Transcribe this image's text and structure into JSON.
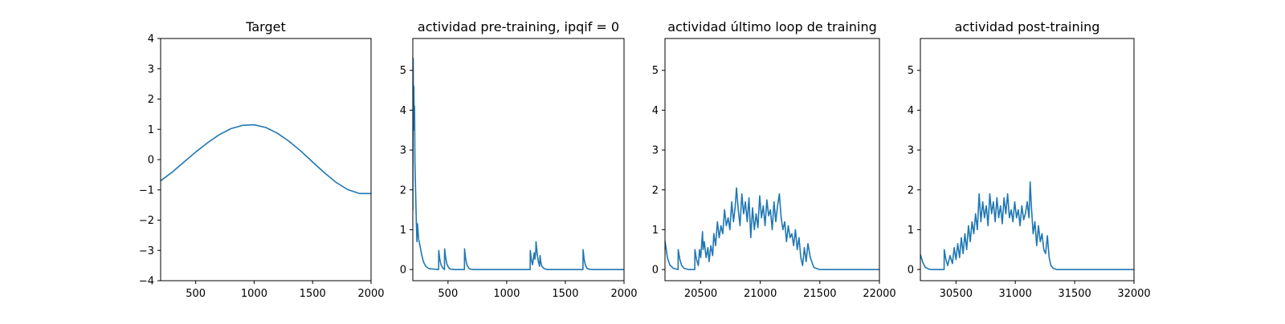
{
  "chart_data": [
    {
      "type": "line",
      "title": "Target",
      "xlabel": "",
      "ylabel": "",
      "xlim": [
        200,
        2000
      ],
      "ylim": [
        -4,
        4
      ],
      "xticks": [
        500,
        1000,
        1500,
        2000
      ],
      "yticks": [
        -4,
        -3,
        -2,
        -1,
        0,
        1,
        2,
        3,
        4
      ],
      "grid": false,
      "series": [
        {
          "color": "#1f77b4",
          "x": [
            200,
            300,
            400,
            500,
            600,
            700,
            800,
            900,
            1000,
            1100,
            1200,
            1300,
            1400,
            1500,
            1600,
            1700,
            1800,
            1900,
            2000
          ],
          "y": [
            -0.7,
            -0.41,
            -0.08,
            0.25,
            0.55,
            0.82,
            1.02,
            1.13,
            1.15,
            1.06,
            0.87,
            0.6,
            0.28,
            -0.08,
            -0.43,
            -0.75,
            -0.99,
            -1.12,
            -1.12
          ]
        }
      ]
    },
    {
      "type": "line",
      "title": "actividad pre-training, ipqif = 0",
      "xlabel": "",
      "ylabel": "",
      "xlim": [
        200,
        2000
      ],
      "ylim": [
        -0.28,
        5.8
      ],
      "xticks": [
        500,
        1000,
        1500,
        2000
      ],
      "yticks": [
        0,
        1,
        2,
        3,
        4,
        5
      ],
      "grid": false,
      "series": [
        {
          "color": "#1f77b4",
          "x": [
            200,
            203,
            206,
            209,
            212,
            215,
            218,
            222,
            226,
            230,
            235,
            240,
            250,
            260,
            275,
            290,
            310,
            340,
            420,
            421,
            430,
            440,
            455,
            470,
            471,
            480,
            490,
            505,
            520,
            560,
            640,
            641,
            650,
            660,
            675,
            690,
            720,
            800,
            900,
            1000,
            1100,
            1200,
            1201,
            1210,
            1220,
            1235,
            1240,
            1248,
            1250,
            1260,
            1270,
            1280,
            1285,
            1290,
            1300,
            1320,
            1350,
            1450,
            1550,
            1650,
            1651,
            1660,
            1670,
            1685,
            1700,
            1730,
            1800,
            1900,
            2000
          ],
          "y": [
            1.5,
            5.3,
            3.5,
            4.6,
            3.6,
            4.1,
            2.7,
            2.2,
            1.7,
            1.2,
            0.7,
            1.15,
            0.75,
            0.62,
            0.38,
            0.2,
            0.08,
            0.02,
            0.0,
            0.48,
            0.26,
            0.12,
            0.04,
            0.0,
            0.52,
            0.3,
            0.14,
            0.05,
            0.01,
            0.0,
            0.0,
            0.52,
            0.28,
            0.13,
            0.04,
            0.01,
            0.0,
            0.0,
            0.0,
            0.0,
            0.0,
            0.0,
            0.48,
            0.26,
            0.12,
            0.42,
            0.26,
            0.46,
            0.7,
            0.4,
            0.2,
            0.08,
            0.35,
            0.2,
            0.08,
            0.02,
            0.0,
            0.0,
            0.0,
            0.0,
            0.5,
            0.26,
            0.12,
            0.03,
            0.01,
            0.0,
            0.0,
            0.0,
            0.0
          ]
        }
      ]
    },
    {
      "type": "line",
      "title": "actividad último loop de training",
      "xlabel": "",
      "ylabel": "",
      "xlim": [
        20200,
        22000
      ],
      "ylim": [
        -0.28,
        5.8
      ],
      "xticks": [
        20500,
        21000,
        21500,
        22000
      ],
      "yticks": [
        0,
        1,
        2,
        3,
        4,
        5
      ],
      "grid": false,
      "series": [
        {
          "color": "#1f77b4",
          "x": [
            20200,
            20220,
            20240,
            20270,
            20300,
            20310,
            20311,
            20325,
            20340,
            20360,
            20400,
            20450,
            20451,
            20465,
            20480,
            20490,
            20500,
            20515,
            20520,
            20530,
            20545,
            20560,
            20570,
            20585,
            20600,
            20610,
            20625,
            20640,
            20655,
            20670,
            20685,
            20700,
            20715,
            20730,
            20745,
            20760,
            20775,
            20790,
            20800,
            20815,
            20830,
            20845,
            20860,
            20875,
            20890,
            20905,
            20920,
            20935,
            20950,
            20965,
            20980,
            20995,
            21010,
            21025,
            21040,
            21055,
            21070,
            21085,
            21100,
            21115,
            21130,
            21145,
            21160,
            21175,
            21190,
            21205,
            21220,
            21235,
            21250,
            21265,
            21280,
            21295,
            21310,
            21325,
            21340,
            21355,
            21370,
            21385,
            21400,
            21420,
            21450,
            21500,
            21600,
            21700,
            21800,
            21900,
            22000
          ],
          "y": [
            0.72,
            0.3,
            0.12,
            0.03,
            0.01,
            0.0,
            0.5,
            0.25,
            0.1,
            0.03,
            0.0,
            0.0,
            0.5,
            0.25,
            0.1,
            0.5,
            0.3,
            0.95,
            0.5,
            0.7,
            0.3,
            0.55,
            0.2,
            0.6,
            0.35,
            0.9,
            0.6,
            1.2,
            0.8,
            1.1,
            0.9,
            1.5,
            1.1,
            1.3,
            1.0,
            1.7,
            1.2,
            1.6,
            2.05,
            1.5,
            1.1,
            1.9,
            1.4,
            1.7,
            1.2,
            1.8,
            0.8,
            1.55,
            1.0,
            1.4,
            1.05,
            1.85,
            1.3,
            1.6,
            1.1,
            1.75,
            1.35,
            1.5,
            1.0,
            1.7,
            1.2,
            1.6,
            1.9,
            1.3,
            1.0,
            1.2,
            0.7,
            1.1,
            0.8,
            0.9,
            0.6,
            1.0,
            0.5,
            0.8,
            0.3,
            0.1,
            0.55,
            0.2,
            0.65,
            0.3,
            0.05,
            0.0,
            0.0,
            0.0,
            0.0,
            0.0,
            0.0
          ]
        }
      ]
    },
    {
      "type": "line",
      "title": "actividad post-training",
      "xlabel": "",
      "ylabel": "",
      "xlim": [
        30200,
        32000
      ],
      "ylim": [
        -0.28,
        5.8
      ],
      "xticks": [
        30500,
        31000,
        31500,
        32000
      ],
      "yticks": [
        0,
        1,
        2,
        3,
        4,
        5
      ],
      "grid": false,
      "series": [
        {
          "color": "#1f77b4",
          "x": [
            30200,
            30220,
            30240,
            30270,
            30300,
            30400,
            30401,
            30415,
            30430,
            30450,
            30470,
            30485,
            30500,
            30515,
            30530,
            30545,
            30560,
            30575,
            30590,
            30605,
            30620,
            30635,
            30650,
            30665,
            30680,
            30695,
            30710,
            30725,
            30740,
            30755,
            30770,
            30785,
            30800,
            30815,
            30830,
            30845,
            30860,
            30875,
            30890,
            30905,
            30920,
            30935,
            30950,
            30965,
            30980,
            30995,
            31010,
            31025,
            31040,
            31055,
            31070,
            31085,
            31100,
            31115,
            31125,
            31135,
            31150,
            31165,
            31180,
            31195,
            31210,
            31225,
            31240,
            31255,
            31270,
            31285,
            31300,
            31320,
            31350,
            31400,
            31500,
            31600,
            31700,
            31800,
            31900,
            32000
          ],
          "y": [
            0.38,
            0.18,
            0.06,
            0.01,
            0.0,
            0.0,
            0.5,
            0.25,
            0.1,
            0.35,
            0.15,
            0.55,
            0.25,
            0.65,
            0.3,
            0.8,
            0.4,
            0.9,
            0.5,
            1.1,
            0.7,
            1.2,
            0.9,
            1.4,
            1.0,
            1.9,
            1.2,
            1.7,
            1.3,
            1.6,
            1.1,
            1.9,
            1.4,
            1.7,
            1.2,
            1.8,
            1.3,
            1.6,
            1.15,
            1.8,
            1.4,
            1.9,
            1.3,
            1.5,
            1.2,
            1.7,
            1.3,
            1.5,
            1.1,
            1.6,
            1.25,
            1.4,
            1.7,
            1.3,
            2.2,
            1.6,
            0.9,
            1.2,
            0.6,
            1.1,
            0.7,
            0.9,
            0.5,
            0.4,
            0.85,
            0.3,
            0.1,
            0.03,
            0.0,
            0.0,
            0.0,
            0.0,
            0.0,
            0.0,
            0.0,
            0.0
          ]
        }
      ]
    }
  ]
}
